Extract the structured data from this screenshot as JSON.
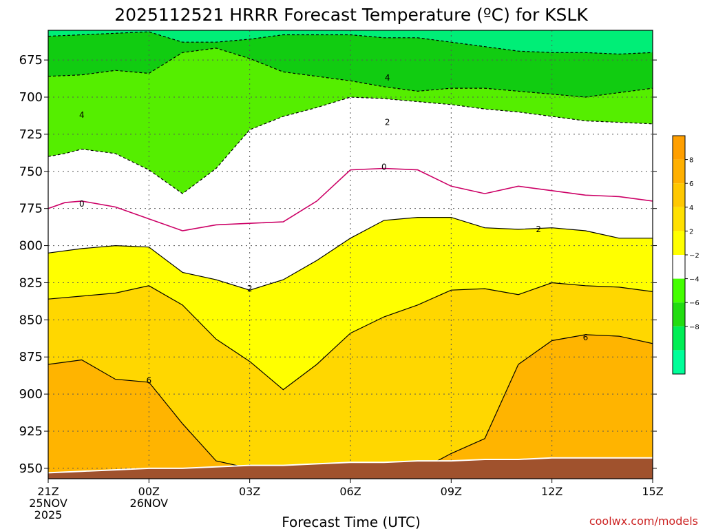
{
  "chart_data": {
    "type": "area",
    "title": "2025112521 HRRR Forecast Temperature (ºC) for KSLK",
    "xlabel": "Forecast Time (UTC)",
    "ylabel": "",
    "y_axis": "pressure (hPa), inverted",
    "ylim": [
      957,
      655
    ],
    "xlim": [
      0,
      18
    ],
    "yticks": [
      "675",
      "700",
      "725",
      "750",
      "775",
      "800",
      "825",
      "850",
      "875",
      "900",
      "925",
      "950"
    ],
    "xticks": [
      {
        "x": 0,
        "lines": [
          "21Z",
          "25NOV",
          "2025"
        ]
      },
      {
        "x": 3,
        "lines": [
          "00Z",
          "26NOV"
        ]
      },
      {
        "x": 6,
        "lines": [
          "03Z"
        ]
      },
      {
        "x": 9,
        "lines": [
          "06Z"
        ]
      },
      {
        "x": 12,
        "lines": [
          "09Z"
        ]
      },
      {
        "x": 15,
        "lines": [
          "12Z"
        ]
      },
      {
        "x": 18,
        "lines": [
          "15Z"
        ]
      }
    ],
    "grid": true,
    "colorbar": {
      "position": "right",
      "labels": [
        "8",
        "6",
        "4",
        "2",
        "−2",
        "−4",
        "−6",
        "−8"
      ],
      "colors": [
        "#ff9f00",
        "#ffb000",
        "#ffc800",
        "#ffe000",
        "#ffff00",
        "#ffffff",
        "#44ff00",
        "#22dd11",
        "#00ee55",
        "#00ff99"
      ]
    },
    "fill_colors": {
      "t_lt_-6": "#00ee77",
      "t_-6_to_-4": "#11cc11",
      "t_-4_to_-2": "#55ee00",
      "t_-2_to_2": "#ffffff",
      "t_2_to_4": "#ffff00",
      "t_4_to_6": "#ffd700",
      "t_gt_6": "#ffb400",
      "terrain": "#a0522d",
      "zero_line": "#cc0066"
    },
    "contours": [
      {
        "value": "-6",
        "style": "dashed",
        "points": [
          [
            0,
            659
          ],
          [
            1,
            658
          ],
          [
            2,
            657
          ],
          [
            3,
            656
          ],
          [
            4,
            663
          ],
          [
            5,
            663
          ],
          [
            6,
            661
          ],
          [
            7,
            658
          ],
          [
            8,
            658
          ],
          [
            9,
            658
          ],
          [
            10,
            660
          ],
          [
            11,
            660
          ],
          [
            12,
            663
          ],
          [
            13,
            666
          ],
          [
            14,
            669
          ],
          [
            15,
            670
          ],
          [
            16,
            670
          ],
          [
            17,
            671
          ],
          [
            18,
            670
          ]
        ]
      },
      {
        "value": "-4",
        "style": "dashed",
        "points": [
          [
            0,
            686
          ],
          [
            1,
            685
          ],
          [
            2,
            682
          ],
          [
            3,
            684
          ],
          [
            4,
            670
          ],
          [
            5,
            667
          ],
          [
            6,
            674
          ],
          [
            7,
            683
          ],
          [
            8,
            686
          ],
          [
            9,
            689
          ],
          [
            10,
            693
          ],
          [
            11,
            696
          ],
          [
            12,
            694
          ],
          [
            13,
            694
          ],
          [
            14,
            696
          ],
          [
            15,
            698
          ],
          [
            16,
            700
          ],
          [
            17,
            697
          ],
          [
            18,
            694
          ]
        ]
      },
      {
        "value": "-2",
        "style": "dashed",
        "points": [
          [
            0,
            740
          ],
          [
            0.5,
            738
          ],
          [
            1,
            735
          ],
          [
            2,
            738
          ],
          [
            3,
            749
          ],
          [
            4,
            765
          ],
          [
            5,
            748
          ],
          [
            6,
            722
          ],
          [
            7,
            713
          ],
          [
            8,
            707
          ],
          [
            9,
            700
          ],
          [
            10,
            701
          ],
          [
            11,
            703
          ],
          [
            12,
            705
          ],
          [
            13,
            708
          ],
          [
            14,
            710
          ],
          [
            15,
            713
          ],
          [
            16,
            716
          ],
          [
            17,
            717
          ],
          [
            18,
            718
          ]
        ]
      },
      {
        "value": "0",
        "style": "magenta",
        "points": [
          [
            0,
            775
          ],
          [
            0.5,
            771
          ],
          [
            1,
            770
          ],
          [
            2,
            774
          ],
          [
            3,
            782
          ],
          [
            4,
            790
          ],
          [
            5,
            786
          ],
          [
            6,
            785
          ],
          [
            7,
            784
          ],
          [
            8,
            770
          ],
          [
            9,
            749
          ],
          [
            10,
            748
          ],
          [
            11,
            749
          ],
          [
            12,
            760
          ],
          [
            13,
            765
          ],
          [
            14,
            760
          ],
          [
            15,
            763
          ],
          [
            16,
            766
          ],
          [
            17,
            767
          ],
          [
            18,
            770
          ]
        ]
      },
      {
        "value": "2",
        "style": "solid",
        "points": [
          [
            0,
            805
          ],
          [
            1,
            802
          ],
          [
            2,
            800
          ],
          [
            3,
            801
          ],
          [
            4,
            818
          ],
          [
            5,
            823
          ],
          [
            6,
            830
          ],
          [
            7,
            823
          ],
          [
            8,
            810
          ],
          [
            9,
            795
          ],
          [
            10,
            783
          ],
          [
            11,
            781
          ],
          [
            12,
            781
          ],
          [
            13,
            788
          ],
          [
            14,
            789
          ],
          [
            15,
            788
          ],
          [
            16,
            790
          ],
          [
            17,
            795
          ],
          [
            18,
            795
          ]
        ]
      },
      {
        "value": "4",
        "style": "solid",
        "points": [
          [
            0,
            836
          ],
          [
            1,
            834
          ],
          [
            2,
            832
          ],
          [
            3,
            827
          ],
          [
            4,
            840
          ],
          [
            5,
            863
          ],
          [
            6,
            878
          ],
          [
            7,
            897
          ],
          [
            8,
            880
          ],
          [
            9,
            859
          ],
          [
            10,
            848
          ],
          [
            11,
            840
          ],
          [
            12,
            830
          ],
          [
            13,
            829
          ],
          [
            14,
            833
          ],
          [
            15,
            825
          ],
          [
            16,
            827
          ],
          [
            17,
            828
          ],
          [
            18,
            831
          ]
        ]
      },
      {
        "value": "6",
        "style": "solid",
        "points": [
          [
            0,
            880
          ],
          [
            1,
            877
          ],
          [
            2,
            890
          ],
          [
            3,
            892
          ],
          [
            4,
            920
          ],
          [
            5,
            945
          ],
          [
            6,
            950
          ],
          [
            7,
            952
          ],
          [
            8,
            955
          ],
          [
            9,
            955
          ],
          [
            10,
            955
          ],
          [
            11,
            952
          ],
          [
            12,
            940
          ],
          [
            13,
            930
          ],
          [
            14,
            880
          ],
          [
            15,
            864
          ],
          [
            16,
            860
          ],
          [
            17,
            861
          ],
          [
            18,
            866
          ]
        ]
      }
    ],
    "terrain": {
      "points": [
        [
          0,
          953
        ],
        [
          1,
          952
        ],
        [
          2,
          951
        ],
        [
          3,
          950
        ],
        [
          4,
          950
        ],
        [
          5,
          949
        ],
        [
          6,
          948
        ],
        [
          7,
          948
        ],
        [
          8,
          947
        ],
        [
          9,
          946
        ],
        [
          10,
          946
        ],
        [
          11,
          945
        ],
        [
          12,
          945
        ],
        [
          13,
          944
        ],
        [
          14,
          944
        ],
        [
          15,
          943
        ],
        [
          16,
          943
        ],
        [
          17,
          943
        ],
        [
          18,
          943
        ]
      ]
    },
    "contour_labels": [
      {
        "text": "4",
        "x": 1.0,
        "y": 712
      },
      {
        "text": "4",
        "x": 10.1,
        "y": 687
      },
      {
        "text": "2",
        "x": 10.1,
        "y": 717
      },
      {
        "text": "0",
        "x": 1.0,
        "y": 772
      },
      {
        "text": "0",
        "x": 10.0,
        "y": 747
      },
      {
        "text": "2",
        "x": 6.0,
        "y": 829
      },
      {
        "text": "2",
        "x": 14.6,
        "y": 789
      },
      {
        "text": "6",
        "x": 3.0,
        "y": 891
      },
      {
        "text": "6",
        "x": 16.0,
        "y": 862
      }
    ]
  },
  "credit": "coolwx.com/models"
}
